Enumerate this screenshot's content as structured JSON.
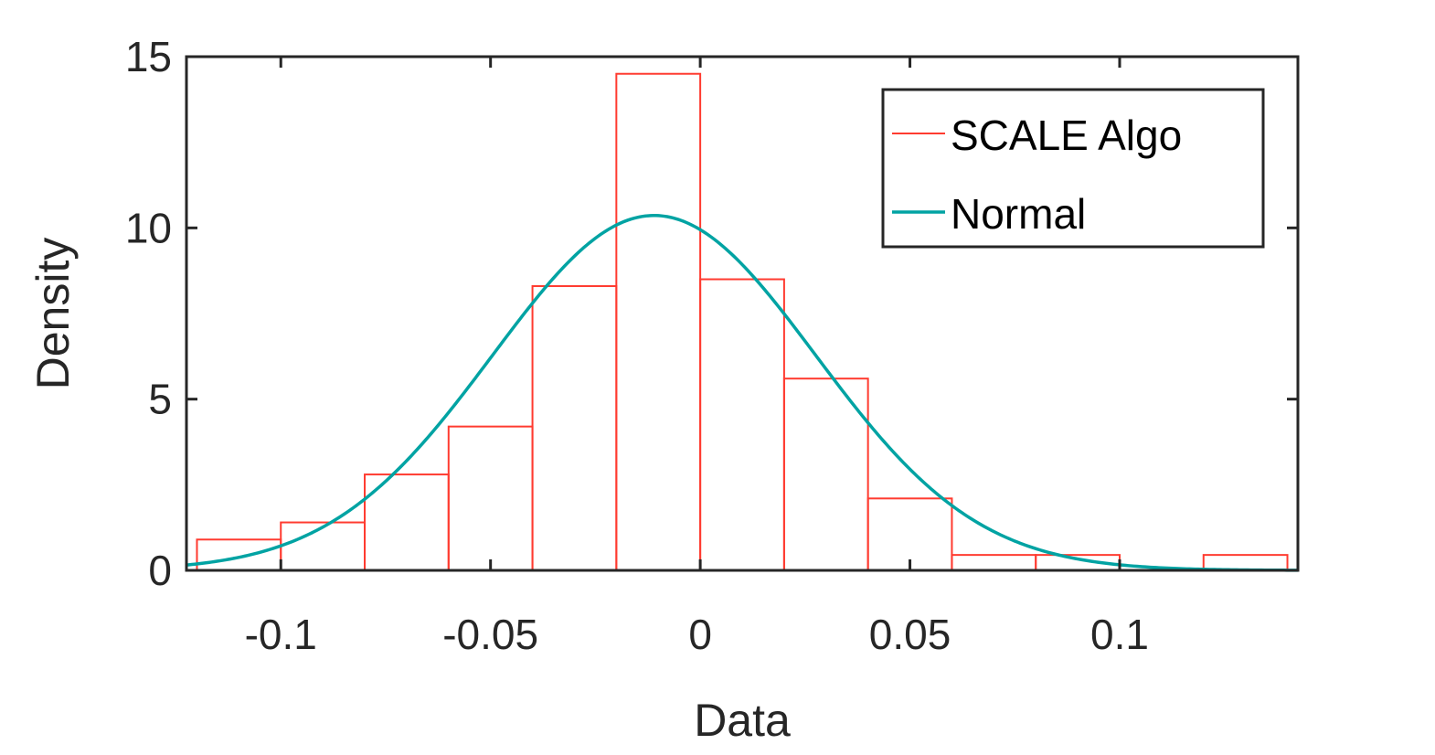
{
  "chart_data": {
    "type": "histogram",
    "title": "",
    "xlabel": "Data",
    "ylabel": "Density",
    "xlim": [
      -0.1225,
      0.1425
    ],
    "ylim": [
      0,
      15
    ],
    "xticks": [
      -0.1,
      -0.05,
      0,
      0.05,
      0.1
    ],
    "xtick_labels": [
      "-0.1",
      "-0.05",
      "0",
      "0.05",
      "0.1"
    ],
    "yticks": [
      0,
      5,
      10,
      15
    ],
    "ytick_labels": [
      "0",
      "5",
      "10",
      "15"
    ],
    "grid": false,
    "legend_position": "top-right",
    "series": [
      {
        "name": "SCALE Algo",
        "kind": "histogram",
        "color": "#ff3b30",
        "bin_edges": [
          -0.12,
          -0.1,
          -0.08,
          -0.06,
          -0.04,
          -0.02,
          0.0,
          0.02,
          0.04,
          0.06,
          0.08,
          0.1,
          0.12,
          0.14
        ],
        "values": [
          0.9,
          1.4,
          2.8,
          4.2,
          8.3,
          14.5,
          8.5,
          5.6,
          2.1,
          0.45,
          0.45,
          0.0,
          0.45
        ]
      },
      {
        "name": "Normal",
        "kind": "line",
        "color": "#00a3a3",
        "distribution": {
          "mean": -0.011,
          "std": 0.0385
        },
        "peak_density": 10.3
      }
    ]
  }
}
